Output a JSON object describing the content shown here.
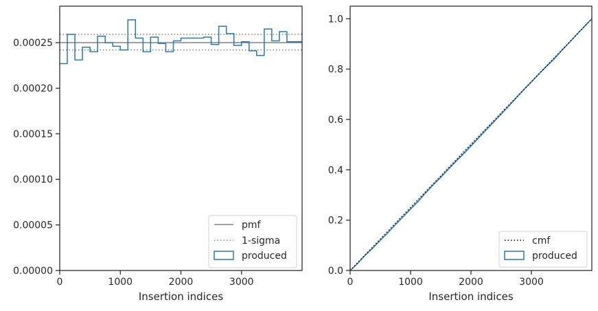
{
  "chart_data": [
    {
      "type": "histogram",
      "xlabel": "Insertion indices",
      "ylabel": "",
      "xlim": [
        0,
        4000
      ],
      "ylim": [
        0,
        0.00029
      ],
      "xticks": [
        0,
        1000,
        2000,
        3000
      ],
      "xtick_labels": [
        "0",
        "1000",
        "2000",
        "3000"
      ],
      "yticks": [
        0,
        5e-05,
        0.0001,
        0.00015,
        0.0002,
        0.00025
      ],
      "ytick_labels": [
        "0.00000",
        "0.00005",
        "0.00010",
        "0.00015",
        "0.00020",
        "0.00025"
      ],
      "grid": false,
      "legend_position": "lower-right",
      "pmf": 0.00025,
      "sigma_band": [
        0.000242,
        0.000259
      ],
      "bin_edges": [
        0,
        125,
        250,
        375,
        500,
        625,
        750,
        875,
        1000,
        1125,
        1250,
        1375,
        1500,
        1625,
        1750,
        1875,
        2000,
        2125,
        2250,
        2375,
        2500,
        2625,
        2750,
        2875,
        3000,
        3125,
        3250,
        3375,
        3500,
        3625,
        3750,
        3875,
        4000
      ],
      "produced": [
        0.000227,
        0.000259,
        0.000231,
        0.000245,
        0.00024,
        0.000257,
        0.00025,
        0.000246,
        0.000242,
        0.000275,
        0.000255,
        0.00024,
        0.000256,
        0.000249,
        0.00024,
        0.000252,
        0.000255,
        0.000255,
        0.000255,
        0.000256,
        0.000248,
        0.000268,
        0.00026,
        0.000247,
        0.000251,
        0.000241,
        0.000236,
        0.000265,
        0.000252,
        0.000262,
        0.000251,
        0.000251
      ],
      "series": [
        {
          "name": "pmf",
          "style": "solid",
          "color": "#808080"
        },
        {
          "name": "1-sigma",
          "style": "dotted",
          "color": "#808080"
        },
        {
          "name": "produced",
          "style": "step",
          "color": "#2878b5"
        }
      ]
    },
    {
      "type": "line",
      "xlabel": "Insertion indices",
      "ylabel": "",
      "xlim": [
        0,
        4000
      ],
      "ylim": [
        0,
        1.05
      ],
      "xticks": [
        0,
        1000,
        2000,
        3000
      ],
      "xtick_labels": [
        "0",
        "1000",
        "2000",
        "3000"
      ],
      "yticks": [
        0,
        0.2,
        0.4,
        0.6,
        0.8,
        1.0
      ],
      "ytick_labels": [
        "0.0",
        "0.2",
        "0.4",
        "0.6",
        "0.8",
        "1.0"
      ],
      "grid": false,
      "legend_position": "lower-right",
      "cmf": {
        "x": [
          0,
          4000
        ],
        "y": [
          0,
          1.0
        ]
      },
      "series": [
        {
          "name": "cmf",
          "style": "dotted",
          "color": "#000000"
        },
        {
          "name": "produced",
          "style": "step",
          "color": "#2878b5"
        }
      ]
    }
  ],
  "colors": {
    "produced": "#2878b5",
    "band": "#b8c8d6",
    "pmf": "#808080",
    "cmf": "#000000",
    "axes": "#262626"
  }
}
